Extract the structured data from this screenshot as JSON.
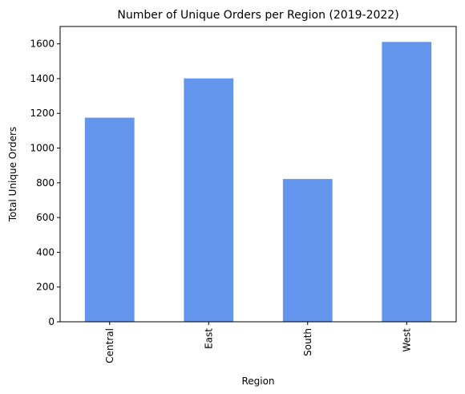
{
  "chart_data": {
    "type": "bar",
    "title": "Number of Unique Orders per Region (2019-2022)",
    "xlabel": "Region",
    "ylabel": "Total Unique Orders",
    "categories": [
      "Central",
      "East",
      "South",
      "West"
    ],
    "values": [
      1175,
      1401,
      822,
      1611
    ],
    "ylim": [
      0,
      1700
    ],
    "yticks": [
      0,
      200,
      400,
      600,
      800,
      1000,
      1200,
      1400,
      1600
    ],
    "x_tick_rotation": "vertical",
    "grid": false,
    "legend": "none",
    "bar_color": "#6495ED"
  }
}
